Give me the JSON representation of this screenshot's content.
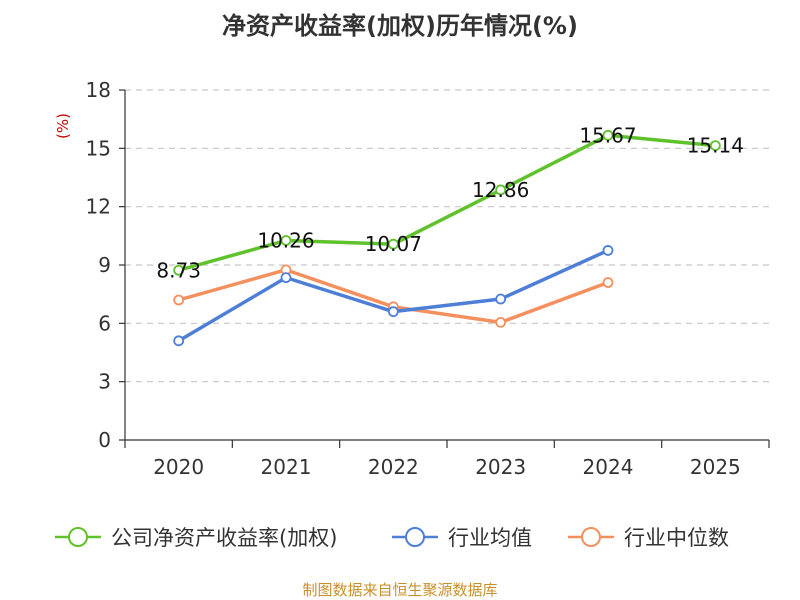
{
  "title": "净资产收益率(加权)历年情况(%)",
  "source": "制图数据来自恒生聚源数据库",
  "chart_data": {
    "type": "line",
    "title": "净资产收益率(加权)历年情况(%)",
    "ylabel": "(%)",
    "xlabel": "",
    "ylim": [
      0,
      18
    ],
    "yticks": [
      0,
      3,
      6,
      9,
      12,
      15,
      18
    ],
    "grid": true,
    "legend_position": "bottom",
    "categories": [
      "2020",
      "2021",
      "2022",
      "2023",
      "2024",
      "2025"
    ],
    "series": [
      {
        "name": "公司净资产收益率(加权)",
        "color": "#5fc22c",
        "values": [
          8.73,
          10.26,
          10.07,
          12.86,
          15.67,
          15.14
        ],
        "labels": [
          "8.73",
          "10.26",
          "10.07",
          "12.86",
          "15.67",
          "15.14"
        ],
        "show_labels": true
      },
      {
        "name": "行业均值",
        "color": "#4e7fd6",
        "values": [
          5.1,
          8.35,
          6.6,
          7.25,
          9.75,
          null
        ],
        "show_labels": false
      },
      {
        "name": "行业中位数",
        "color": "#f48f5e",
        "values": [
          7.2,
          8.75,
          6.85,
          6.05,
          8.1,
          null
        ],
        "show_labels": false
      }
    ]
  }
}
